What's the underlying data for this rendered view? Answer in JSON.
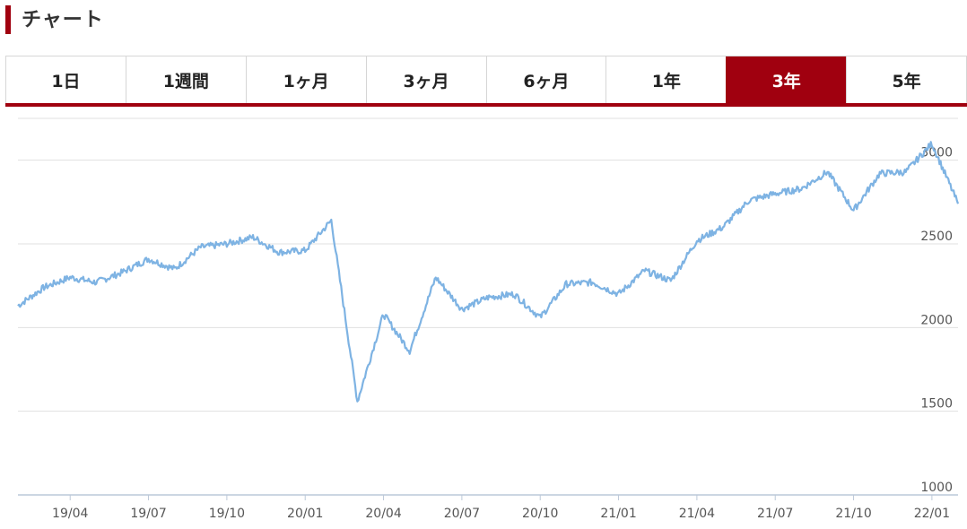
{
  "heading": {
    "title": "チャート"
  },
  "tabs": [
    {
      "label": "1日",
      "active": false
    },
    {
      "label": "1週間",
      "active": false
    },
    {
      "label": "1ヶ月",
      "active": false
    },
    {
      "label": "3ヶ月",
      "active": false
    },
    {
      "label": "6ヶ月",
      "active": false
    },
    {
      "label": "1年",
      "active": false
    },
    {
      "label": "3年",
      "active": true
    },
    {
      "label": "5年",
      "active": false
    }
  ],
  "colors": {
    "accent": "#a0000f",
    "line": "#7eb3e3",
    "grid": "#e0e0e0"
  },
  "chart_data": {
    "type": "line",
    "title": "",
    "xlabel": "",
    "ylabel": "",
    "ylim": [
      1000,
      3250
    ],
    "y_ticks": [
      1000,
      1500,
      2000,
      2500,
      3000
    ],
    "x_ticks": [
      "19/04",
      "19/07",
      "19/10",
      "20/01",
      "20/04",
      "20/07",
      "20/10",
      "21/01",
      "21/04",
      "21/07",
      "21/10",
      "22/01"
    ],
    "x_range": [
      "19/02",
      "22/02"
    ],
    "grid": true,
    "series": [
      {
        "x": [
          "19/02",
          "19/03",
          "19/04",
          "19/05",
          "19/06",
          "19/07",
          "19/08",
          "19/09",
          "19/10",
          "19/11",
          "19/12",
          "20/01",
          "20/02",
          "20/03",
          "20/04",
          "20/05",
          "20/06",
          "20/07",
          "20/08",
          "20/09",
          "20/10",
          "20/11",
          "20/12",
          "21/01",
          "21/02",
          "21/03",
          "21/04",
          "21/05",
          "21/06",
          "21/07",
          "21/08",
          "21/09",
          "21/10",
          "21/11",
          "21/12",
          "22/01",
          "22/02"
        ],
        "values": [
          2130,
          2240,
          2300,
          2270,
          2330,
          2410,
          2350,
          2480,
          2500,
          2540,
          2450,
          2460,
          2640,
          1560,
          2080,
          1860,
          2300,
          2110,
          2180,
          2200,
          2060,
          2260,
          2270,
          2200,
          2340,
          2280,
          2520,
          2600,
          2760,
          2800,
          2830,
          2930,
          2700,
          2920,
          2930,
          3100,
          2740
        ]
      }
    ]
  }
}
